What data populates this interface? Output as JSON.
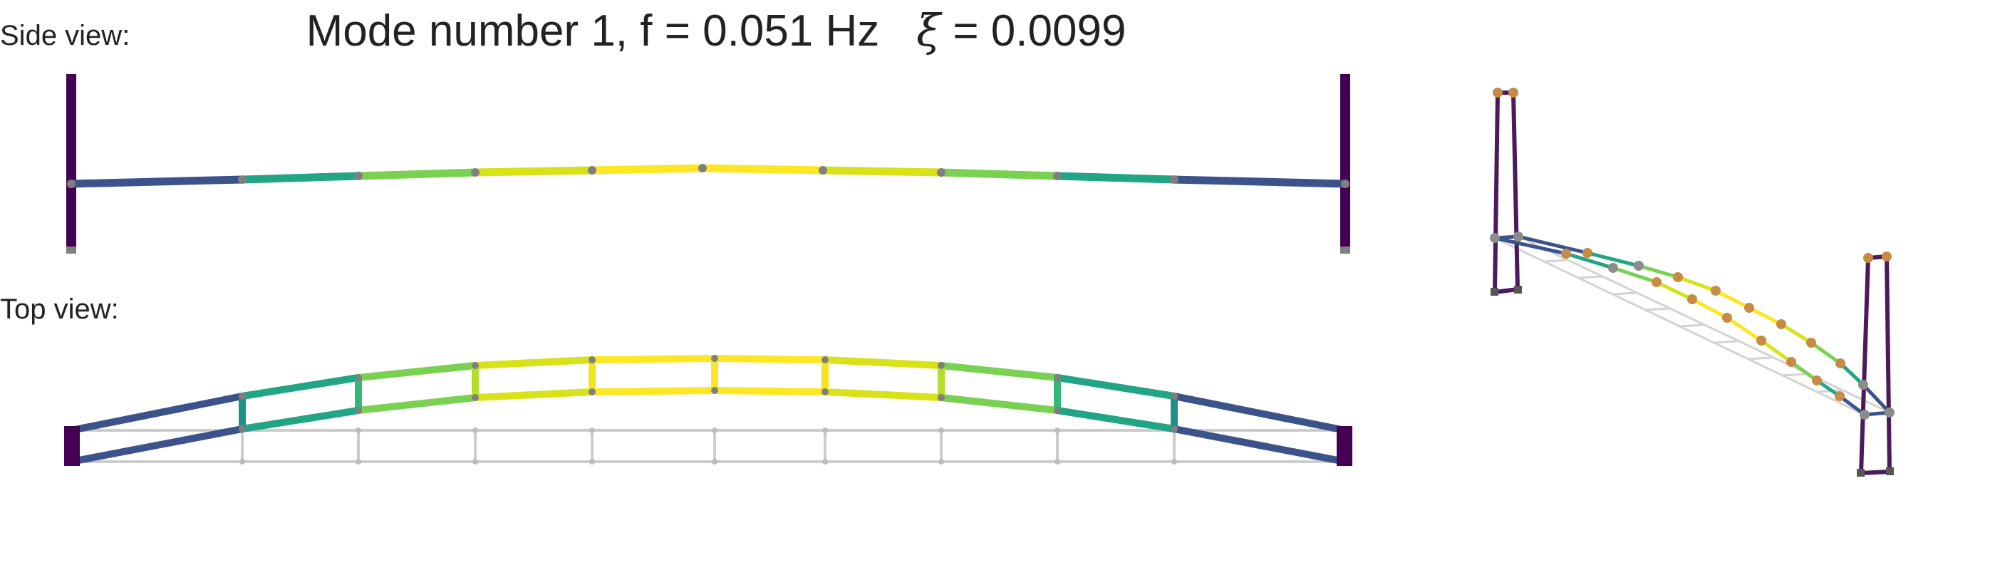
{
  "title": {
    "prefix": "Mode number 1, f = 0.051 Hz",
    "xi_symbol": "ξ",
    "xi_value": " = 0.0099"
  },
  "labels": {
    "side_view": "Side view:",
    "top_view": "Top view:"
  },
  "colors": {
    "tower": "#440154",
    "deck_end": "#3b528b",
    "deck_teal": "#21a585",
    "deck_green": "#7ad151",
    "deck_yellow": "#d8e219",
    "deck_center": "#fde725",
    "undeformed": "#cccccc",
    "node_gray": "#7f7f7f",
    "node_orange": "#c88a45"
  },
  "colormap": "viridis"
}
